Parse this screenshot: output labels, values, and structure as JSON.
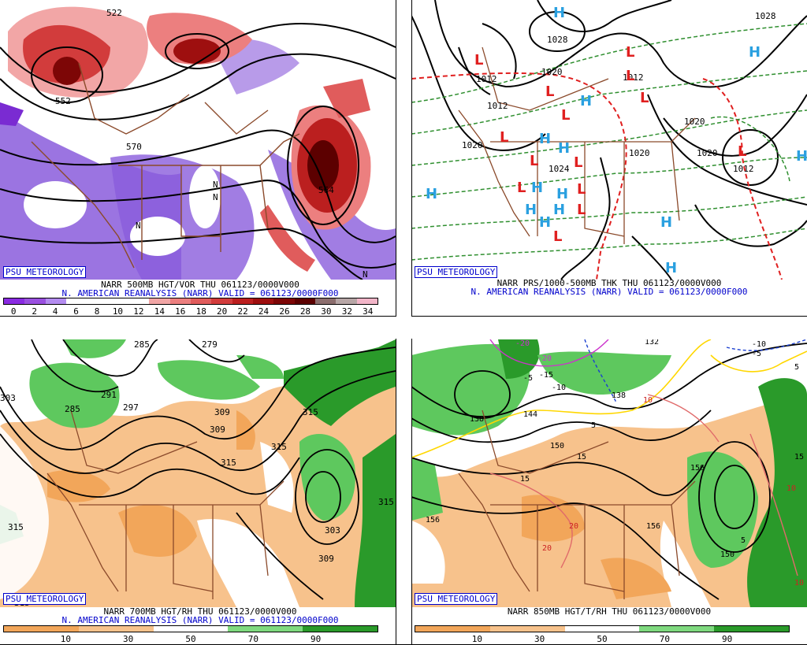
{
  "panels": [
    {
      "credit": "PSU METEOROLOGY",
      "caption": "NARR 500MB HGT/VOR THU 061123/0000V000",
      "subcaption": "N. AMERICAN REANALYSIS (NARR) VALID = 061123/0000F000",
      "scale_labels": [
        "0",
        "2",
        "4",
        "6",
        "8",
        "10",
        "12",
        "14",
        "16",
        "18",
        "20",
        "22",
        "24",
        "26",
        "28",
        "30",
        "32",
        "34"
      ],
      "scale_colors": [
        "#8a2be2",
        "#9a50e0",
        "#b48cf0",
        "#ffffff",
        "#ffffff",
        "#ffffff",
        "#ffffff",
        "#f2a6a6",
        "#ec7f7f",
        "#e05c5c",
        "#d23c3c",
        "#bb1f1f",
        "#9e0f0f",
        "#7d0606",
        "#5c0000",
        "#8c6e6e",
        "#b7a6a6",
        "#f2b5c8"
      ],
      "map_labels": [
        "522",
        "552",
        "570",
        "564",
        "N",
        "N",
        "N",
        "N"
      ]
    },
    {
      "credit": "PSU METEOROLOGY",
      "caption": "NARR PRS/1000-500MB THK THU 061123/0000V000",
      "subcaption": "N. AMERICAN REANALYSIS (NARR) VALID = 061123/0000F000",
      "map_labels": [
        "1028",
        "1020",
        "1012",
        "1012",
        "1020",
        "1012",
        "1020",
        "1024",
        "1020",
        "1020",
        "1012",
        "1028",
        "L",
        "H"
      ],
      "h_symbols": 14,
      "l_symbols": 14
    },
    {
      "credit": "PSU METEOROLOGY",
      "caption": "NARR 700MB HGT/RH THU 061123/0000V000",
      "subcaption": "N. AMERICAN REANALYSIS (NARR) VALID = 061123/0000F000",
      "scale_labels": [
        "10",
        "30",
        "50",
        "70",
        "90"
      ],
      "scale_colors": [
        "#f2a65a",
        "#f7c28c",
        "#ffffff",
        "#7fd97f",
        "#2a9a2a"
      ],
      "map_labels": [
        "285",
        "279",
        "291",
        "285",
        "297",
        "309",
        "315",
        "309",
        "315",
        "315",
        "303",
        "309",
        "315",
        "315",
        "303",
        "315"
      ]
    },
    {
      "credit": "PSU METEOROLOGY",
      "caption": "NARR 850MB HGT/T/RH THU 061123/0000V000",
      "scale_labels": [
        "10",
        "30",
        "50",
        "70",
        "90"
      ],
      "scale_colors": [
        "#f2a65a",
        "#f7c28c",
        "#ffffff",
        "#7fd97f",
        "#2a9a2a"
      ],
      "map_labels": [
        "-20",
        "-20",
        "-15",
        "-5",
        "-10",
        "-10",
        "-5",
        "132",
        "138",
        "144",
        "138",
        "150",
        "156",
        "156",
        "156",
        "150",
        "5",
        "15",
        "15",
        "20",
        "20",
        "5",
        "10",
        "10",
        "15",
        "10",
        "5"
      ]
    }
  ]
}
